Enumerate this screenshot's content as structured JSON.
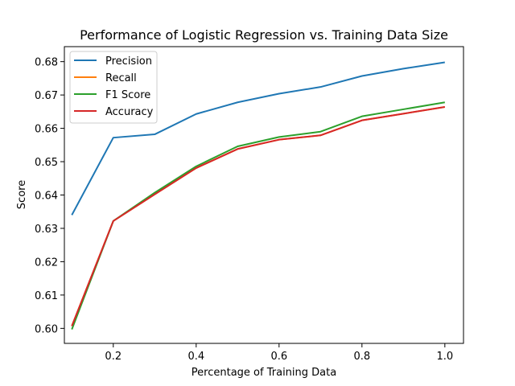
{
  "chart_data": {
    "type": "line",
    "title": "Performance of Logistic Regression vs. Training Data Size",
    "xlabel": "Percentage of Training Data",
    "ylabel": "Score",
    "xlim": [
      0.082,
      1.045
    ],
    "ylim": [
      0.5955,
      0.6845
    ],
    "xticks": [
      0.2,
      0.4,
      0.6,
      0.8,
      1.0
    ],
    "xtick_labels": [
      "0.2",
      "0.4",
      "0.6",
      "0.8",
      "1.0"
    ],
    "yticks": [
      0.6,
      0.61,
      0.62,
      0.63,
      0.64,
      0.65,
      0.66,
      0.67,
      0.68
    ],
    "ytick_labels": [
      "0.60",
      "0.61",
      "0.62",
      "0.63",
      "0.64",
      "0.65",
      "0.66",
      "0.67",
      "0.68"
    ],
    "grid": false,
    "legend_position": "top-left",
    "x": [
      0.1,
      0.2,
      0.3,
      0.4,
      0.5,
      0.6,
      0.7,
      0.8,
      0.9,
      1.0
    ],
    "series": [
      {
        "name": "Precision",
        "color": "#1f77b4",
        "values": [
          0.634,
          0.6572,
          0.6582,
          0.6643,
          0.6678,
          0.6704,
          0.6724,
          0.6757,
          0.6779,
          0.6798
        ]
      },
      {
        "name": "Recall",
        "color": "#ff7f0e",
        "values": [
          0.6007,
          0.6322,
          0.6402,
          0.6481,
          0.6538,
          0.6566,
          0.6579,
          0.6624,
          0.6644,
          0.6664
        ]
      },
      {
        "name": "F1 Score",
        "color": "#2ca02c",
        "values": [
          0.5997,
          0.6322,
          0.6407,
          0.6486,
          0.6546,
          0.6574,
          0.659,
          0.6636,
          0.6657,
          0.6678
        ]
      },
      {
        "name": "Accuracy",
        "color": "#d62728",
        "values": [
          0.6007,
          0.6322,
          0.6402,
          0.6481,
          0.6538,
          0.6566,
          0.6579,
          0.6624,
          0.6644,
          0.6664
        ]
      }
    ]
  }
}
